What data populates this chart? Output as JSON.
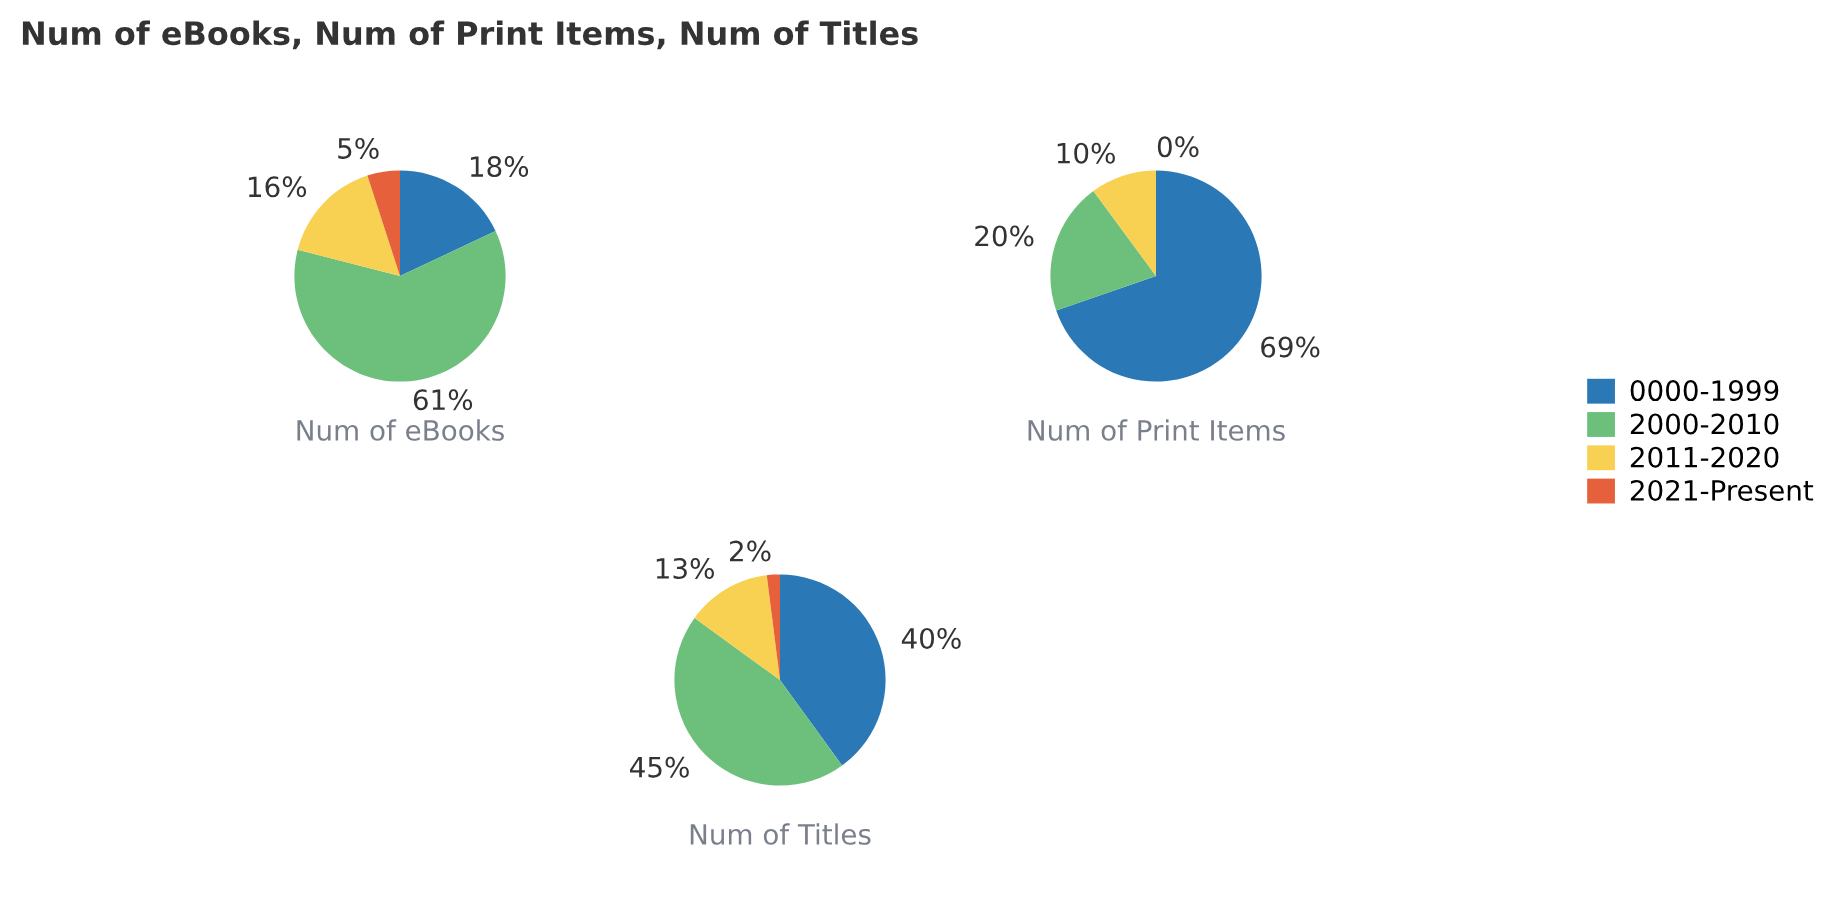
{
  "chart_data": [
    {
      "type": "pie",
      "title": "Num of eBooks, Num of Print Items, Num of Titles",
      "xlabel": "Num of eBooks",
      "legend": "right",
      "categories": [
        "0000-1999",
        "2000-2010",
        "2011-2020",
        "2021-Present"
      ],
      "values": [
        18,
        61,
        16,
        5
      ],
      "value_labels": [
        "18%",
        "61%",
        "16%",
        "5%"
      ],
      "colors": [
        "#2a78b6",
        "#6cc07c",
        "#f8d052",
        "#e6603c"
      ]
    },
    {
      "type": "pie",
      "xlabel": "Num of Print Items",
      "categories": [
        null,
        null,
        null,
        null
      ],
      "values": [
        69,
        20,
        10,
        0
      ],
      "value_labels": [
        "69%",
        "20%",
        "10%",
        "0%"
      ],
      "colors": [
        "#2a78b6",
        "#6cc07c",
        "#f8d052",
        "#e6603c"
      ]
    },
    {
      "type": "pie",
      "xlabel": "Num of Titles",
      "categories": [
        null,
        null,
        null,
        null
      ],
      "values": [
        40,
        45,
        13,
        2
      ],
      "value_labels": [
        "40%",
        "45%",
        "13%",
        "2%"
      ],
      "colors": [
        "#2a78b6",
        "#6cc07c",
        "#f8d052",
        "#e6603c"
      ]
    }
  ]
}
